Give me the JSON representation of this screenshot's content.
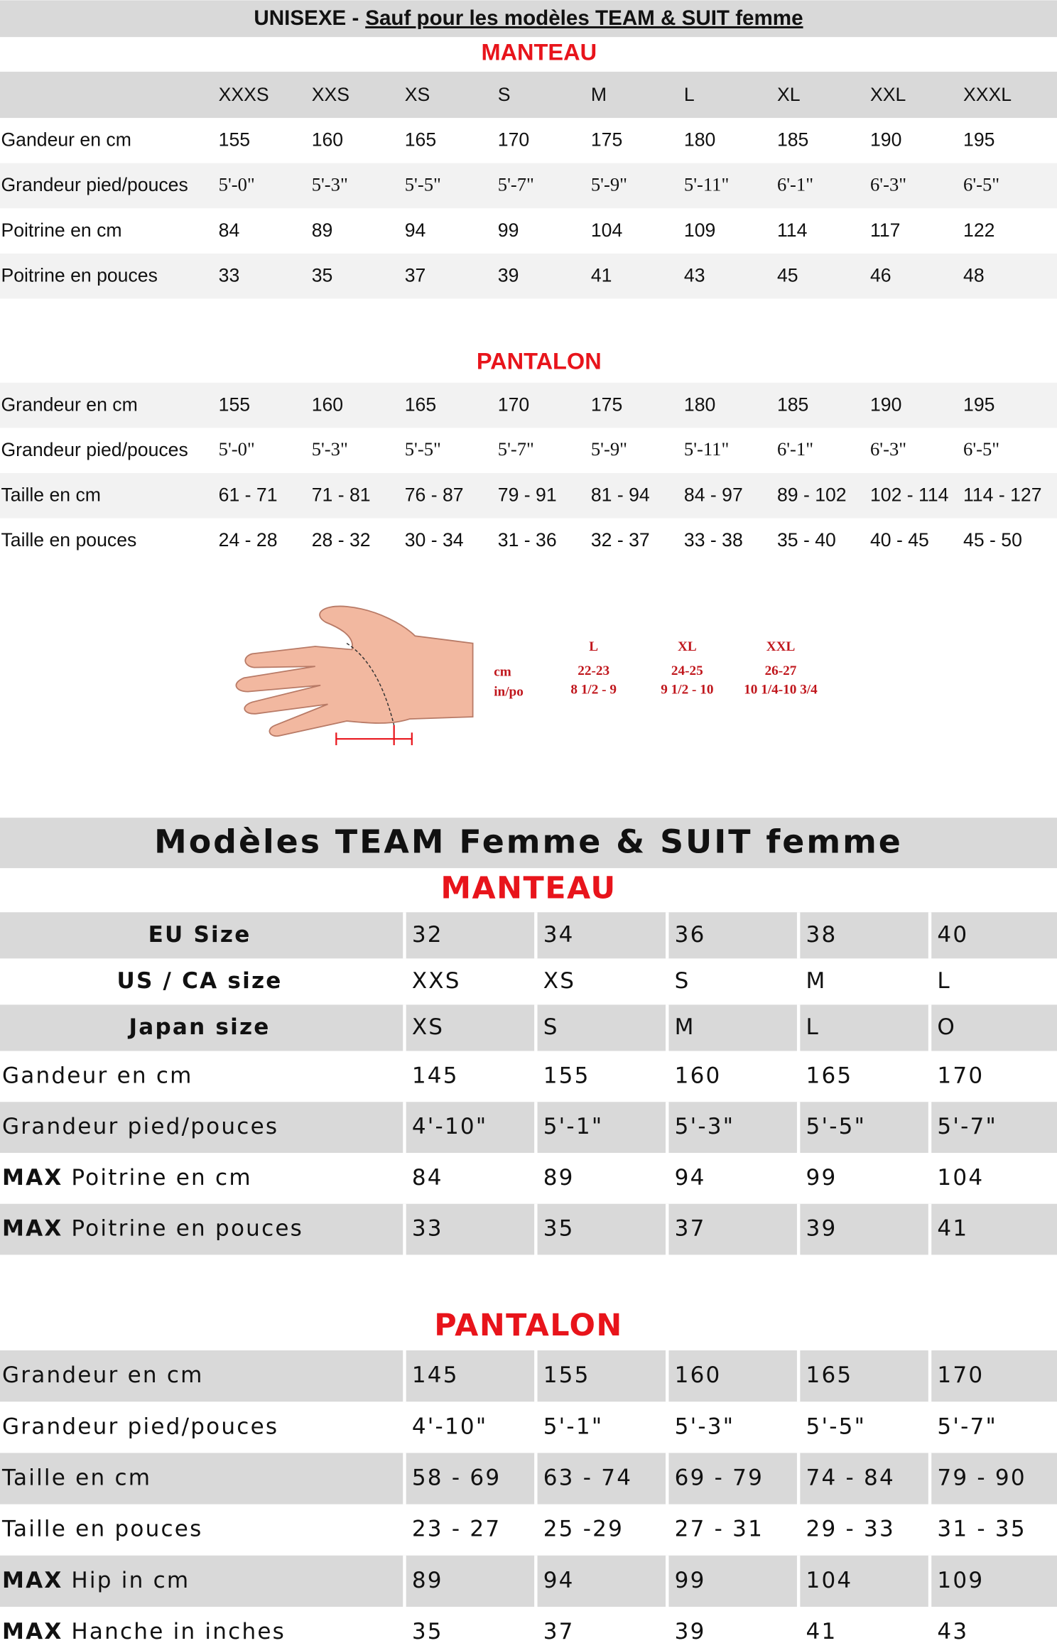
{
  "unisex": {
    "title": {
      "prefix": "UNISEXE -",
      "emphasis": "Sauf pour les modèles TEAM & SUIT femme"
    },
    "manteau": {
      "title": "MANTEAU",
      "sizes": [
        "XXXS",
        "XXS",
        "XS",
        "S",
        "M",
        "L",
        "XL",
        "XXL",
        "XXXL"
      ],
      "rows": [
        {
          "label": "Gandeur en cm",
          "values": [
            "155",
            "160",
            "165",
            "170",
            "175",
            "180",
            "185",
            "190",
            "195"
          ]
        },
        {
          "label": "Grandeur pied/pouces",
          "values": [
            "5'-0\"",
            "5'-3\"",
            "5'-5\"",
            "5'-7\"",
            "5'-9\"",
            "5'-11\"",
            "6'-1\"",
            "6'-3\"",
            "6'-5\""
          ]
        },
        {
          "label": "Poitrine en cm",
          "values": [
            "84",
            "89",
            "94",
            "99",
            "104",
            "109",
            "114",
            "117",
            "122"
          ]
        },
        {
          "label": "Poitrine en pouces",
          "values": [
            "33",
            "35",
            "37",
            "39",
            "41",
            "43",
            "45",
            "46",
            "48"
          ]
        }
      ]
    },
    "pantalon": {
      "title": "PANTALON",
      "rows": [
        {
          "label": "Grandeur en cm",
          "values": [
            "155",
            "160",
            "165",
            "170",
            "175",
            "180",
            "185",
            "190",
            "195"
          ]
        },
        {
          "label": "Grandeur pied/pouces",
          "values": [
            "5'-0\"",
            "5'-3\"",
            "5'-5\"",
            "5'-7\"",
            "5'-9\"",
            "5'-11\"",
            "6'-1\"",
            "6'-3\"",
            "6'-5\""
          ]
        },
        {
          "label": "Taille en cm",
          "values": [
            "61 - 71",
            "71 - 81",
            "76 - 87",
            "79 - 91",
            "81 - 94",
            "84 - 97",
            "89 - 102",
            "102 - 114",
            "114 - 127"
          ]
        },
        {
          "label": "Taille en pouces",
          "values": [
            "24 - 28",
            "28 - 32",
            "30 - 34",
            "31 - 36",
            "32 - 37",
            "33 - 38",
            "35 - 40",
            "40 - 45",
            "45 - 50"
          ]
        }
      ]
    }
  },
  "glove": {
    "units": [
      "cm",
      "in/po"
    ],
    "sizes": [
      {
        "size": "L",
        "cm": "22-23",
        "in": "8 1/2 - 9"
      },
      {
        "size": "XL",
        "cm": "24-25",
        "in": "9 1/2 - 10"
      },
      {
        "size": "XXL",
        "cm": "26-27",
        "in": "10 1/4-10 3/4"
      }
    ]
  },
  "women": {
    "title": "Modèles TEAM Femme & SUIT femme",
    "manteau": {
      "title": "MANTEAU",
      "header_rows": [
        {
          "label": "EU Size",
          "values": [
            "32",
            "34",
            "36",
            "38",
            "40"
          ]
        },
        {
          "label": "US / CA size",
          "values": [
            "XXS",
            "XS",
            "S",
            "M",
            "L"
          ]
        },
        {
          "label": "Japan size",
          "values": [
            "XS",
            "S",
            "M",
            "L",
            "O"
          ]
        }
      ],
      "rows": [
        {
          "label": "Gandeur en cm",
          "values": [
            "145",
            "155",
            "160",
            "165",
            "170"
          ]
        },
        {
          "label": "Grandeur pied/pouces",
          "values": [
            "4'-10\"",
            "5'-1\"",
            "5'-3\"",
            "5'-5\"",
            "5'-7\""
          ]
        },
        {
          "strong": "MAX",
          "label": "Poitrine en cm",
          "values": [
            "84",
            "89",
            "94",
            "99",
            "104"
          ]
        },
        {
          "strong": "MAX",
          "label": "Poitrine en pouces",
          "values": [
            "33",
            "35",
            "37",
            "39",
            "41"
          ]
        }
      ]
    },
    "pantalon": {
      "title": "PANTALON",
      "rows": [
        {
          "label": "Grandeur en cm",
          "values": [
            "145",
            "155",
            "160",
            "165",
            "170"
          ]
        },
        {
          "label": "Grandeur pied/pouces",
          "values": [
            "4'-10\"",
            "5'-1\"",
            "5'-3\"",
            "5'-5\"",
            "5'-7\""
          ]
        },
        {
          "label": "Taille en cm",
          "values": [
            "58 - 69",
            "63 - 74",
            "69 - 79",
            "74 - 84",
            "79 - 90"
          ]
        },
        {
          "label": "Taille en pouces",
          "values": [
            "23 - 27",
            "25 -29",
            "27 - 31",
            "29 - 33",
            "31 - 35"
          ]
        },
        {
          "strong": "MAX",
          "label": "Hip in cm",
          "values": [
            "89",
            "94",
            "99",
            "104",
            "109"
          ]
        },
        {
          "strong": "MAX",
          "label": "Hanche in inches",
          "values": [
            "35",
            "37",
            "39",
            "41",
            "43"
          ]
        }
      ]
    }
  }
}
